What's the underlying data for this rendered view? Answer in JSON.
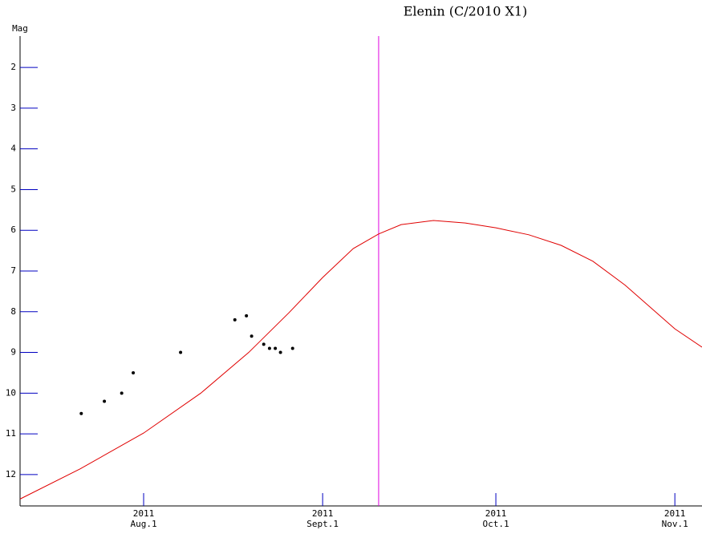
{
  "chart_data": {
    "type": "line",
    "title": "Elenin (C/2010 X1)",
    "y_label": "Mag",
    "y_inverted": true,
    "xlim": [
      191.6,
      309.7
    ],
    "ylim": [
      1.23,
      12.77
    ],
    "yticks": [
      2,
      3,
      4,
      5,
      6,
      7,
      8,
      9,
      10,
      11,
      12
    ],
    "xticks": [
      {
        "value": 213,
        "label": "Aug.1"
      },
      {
        "value": 244,
        "label": "Sept.1"
      },
      {
        "value": 274,
        "label": "Oct.1"
      },
      {
        "value": 305,
        "label": "Nov.1"
      }
    ],
    "xtick_year": [
      "2011",
      "2011",
      "2011",
      "2011"
    ],
    "marker_x": 253.7,
    "marker_color": "#e000e0",
    "tick_color": "#0000c0",
    "series": [
      {
        "kind": "scatter",
        "color": "#000000",
        "x": [
          202.2,
          206.2,
          209.2,
          211.2,
          219.4,
          228.8,
          230.8,
          231.7,
          233.8,
          234.8,
          235.8,
          236.7,
          238.8
        ],
        "values": [
          10.5,
          10.2,
          10.0,
          9.5,
          9.0,
          8.2,
          8.1,
          8.6,
          8.8,
          8.9,
          8.9,
          9.0,
          8.9
        ]
      },
      {
        "kind": "line",
        "color": "#e00000",
        "x": [
          191.6,
          202.0,
          213,
          222.9,
          231.2,
          238.2,
          244,
          249.3,
          253.7,
          257.6,
          263.2,
          268.7,
          274,
          279.7,
          285.3,
          290.8,
          296.4,
          305,
          309.7
        ],
        "values": [
          12.6,
          11.86,
          10.98,
          10.0,
          9.0,
          8.02,
          7.16,
          6.45,
          6.09,
          5.86,
          5.76,
          5.82,
          5.94,
          6.11,
          6.37,
          6.76,
          7.35,
          8.42,
          8.87
        ]
      }
    ]
  }
}
